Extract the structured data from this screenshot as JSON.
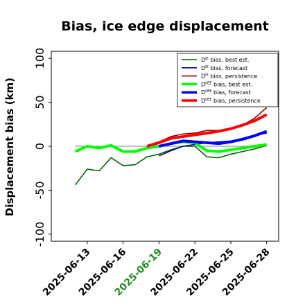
{
  "chart_data": {
    "type": "line",
    "title": "Bias, ice edge displacement",
    "ylabel": "Displacement bias (km)",
    "xlabel": "",
    "ylim": [
      -108,
      108
    ],
    "xlim": [
      "2025-06-10",
      "2025-06-29"
    ],
    "yticks": [
      -100,
      -50,
      0,
      50,
      100
    ],
    "xticks": [
      {
        "date": "2025-06-13",
        "label": "2025-06-13",
        "color": "#000000"
      },
      {
        "date": "2025-06-16",
        "label": "2025-06-16",
        "color": "#000000"
      },
      {
        "date": "2025-06-19",
        "label": "2025-06-19",
        "color": "#228b22"
      },
      {
        "date": "2025-06-22",
        "label": "2025-06-22",
        "color": "#000000"
      },
      {
        "date": "2025-06-25",
        "label": "2025-06-25",
        "color": "#000000"
      },
      {
        "date": "2025-06-28",
        "label": "2025-06-28",
        "color": "#000000"
      }
    ],
    "reference_line": {
      "y": 0,
      "color": "#808080",
      "x_from": "2025-06-12",
      "x_to": "2025-06-28"
    },
    "grid": false,
    "legend_position": "top-right",
    "series": [
      {
        "name": "D",
        "sup": "IE",
        "suffix": " bias, best est.",
        "color": "#006400",
        "width": 1.6,
        "x": [
          "2025-06-12",
          "2025-06-13",
          "2025-06-14",
          "2025-06-15",
          "2025-06-16",
          "2025-06-17",
          "2025-06-18",
          "2025-06-19",
          "2025-06-20",
          "2025-06-21",
          "2025-06-22",
          "2025-06-23",
          "2025-06-24",
          "2025-06-25",
          "2025-06-26",
          "2025-06-27",
          "2025-06-28"
        ],
        "y": [
          -44,
          -26,
          -28,
          -13,
          -22,
          -21,
          -12,
          -9,
          -4,
          0,
          0,
          -12,
          -13,
          -9,
          -6,
          -3,
          1
        ]
      },
      {
        "name": "D",
        "sup": "IE",
        "suffix": " bias, forecast",
        "color": "#00008b",
        "width": 1.6,
        "x": [
          "2025-06-19",
          "2025-06-20",
          "2025-06-21",
          "2025-06-22",
          "2025-06-23",
          "2025-06-24",
          "2025-06-25",
          "2025-06-26",
          "2025-06-27",
          "2025-06-28"
        ],
        "y": [
          -11,
          -5,
          0,
          2,
          4,
          5,
          6,
          9,
          12,
          15
        ]
      },
      {
        "name": "D",
        "sup": "IE",
        "suffix": " bias, persistence",
        "color": "#8b0000",
        "width": 1.6,
        "x": [
          "2025-06-18",
          "2025-06-19",
          "2025-06-20",
          "2025-06-21",
          "2025-06-22",
          "2025-06-23",
          "2025-06-24",
          "2025-06-25",
          "2025-06-26",
          "2025-06-27",
          "2025-06-28"
        ],
        "y": [
          1,
          5,
          11,
          14,
          15,
          18,
          18,
          20,
          24,
          32,
          44
        ]
      },
      {
        "name": "D",
        "sup": "IIEE",
        "suffix": " bias, best est.",
        "color": "#00ff00",
        "width": 4,
        "x": [
          "2025-06-12",
          "2025-06-13",
          "2025-06-14",
          "2025-06-15",
          "2025-06-16",
          "2025-06-17",
          "2025-06-18",
          "2025-06-19",
          "2025-06-20",
          "2025-06-21",
          "2025-06-22",
          "2025-06-23",
          "2025-06-24",
          "2025-06-25",
          "2025-06-26",
          "2025-06-27",
          "2025-06-28"
        ],
        "y": [
          -6,
          0,
          -2,
          1,
          -6,
          -6,
          -2,
          0,
          3,
          5,
          4,
          -5,
          -6,
          -4,
          -2,
          0,
          2
        ]
      },
      {
        "name": "D",
        "sup": "IIEE",
        "suffix": " bias, forecast",
        "color": "#0000ff",
        "width": 4,
        "x": [
          "2025-06-19",
          "2025-06-20",
          "2025-06-21",
          "2025-06-22",
          "2025-06-23",
          "2025-06-24",
          "2025-06-25",
          "2025-06-26",
          "2025-06-27",
          "2025-06-28"
        ],
        "y": [
          0,
          3,
          6,
          5,
          4,
          3,
          5,
          8,
          12,
          17
        ]
      },
      {
        "name": "D",
        "sup": "IIEE",
        "suffix": " bias, persistence",
        "color": "#ff0000",
        "width": 4,
        "x": [
          "2025-06-18",
          "2025-06-19",
          "2025-06-20",
          "2025-06-21",
          "2025-06-22",
          "2025-06-23",
          "2025-06-24",
          "2025-06-25",
          "2025-06-26",
          "2025-06-27",
          "2025-06-28"
        ],
        "y": [
          0,
          4,
          9,
          11,
          13,
          15,
          17,
          20,
          24,
          29,
          36
        ]
      }
    ]
  }
}
